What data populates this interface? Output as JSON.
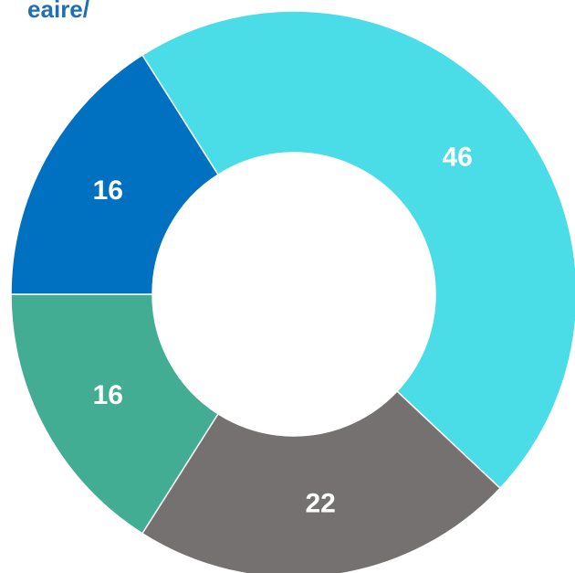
{
  "chart_data": {
    "type": "donut",
    "title": "eaire/",
    "categories": [
      null,
      null,
      null,
      null
    ],
    "values": [
      46,
      22,
      16,
      16
    ],
    "colors": [
      "#4adde8",
      "#767171",
      "#43ad94",
      "#0070c0"
    ]
  }
}
